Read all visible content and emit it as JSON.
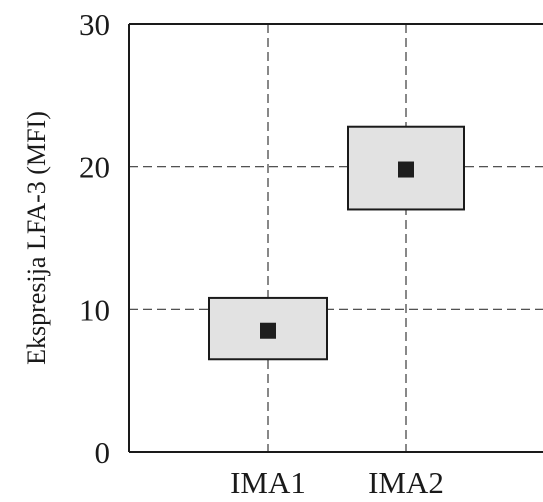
{
  "chart_data": {
    "type": "box",
    "ylabel": "Ekspresija LFA-3 (MFI)",
    "xlabel": "",
    "ylim": [
      0,
      30
    ],
    "yticks": [
      0,
      10,
      20,
      30
    ],
    "grid": true,
    "categories": [
      "IMA1",
      "IMA2"
    ],
    "boxes": [
      {
        "category": "IMA1",
        "lower": 6.5,
        "upper": 10.8,
        "median": 8.5
      },
      {
        "category": "IMA2",
        "lower": 17.0,
        "upper": 22.8,
        "median": 19.8
      }
    ],
    "colors": {
      "box_fill": "#e2e2e2",
      "marker": "#1e1e1e"
    }
  }
}
